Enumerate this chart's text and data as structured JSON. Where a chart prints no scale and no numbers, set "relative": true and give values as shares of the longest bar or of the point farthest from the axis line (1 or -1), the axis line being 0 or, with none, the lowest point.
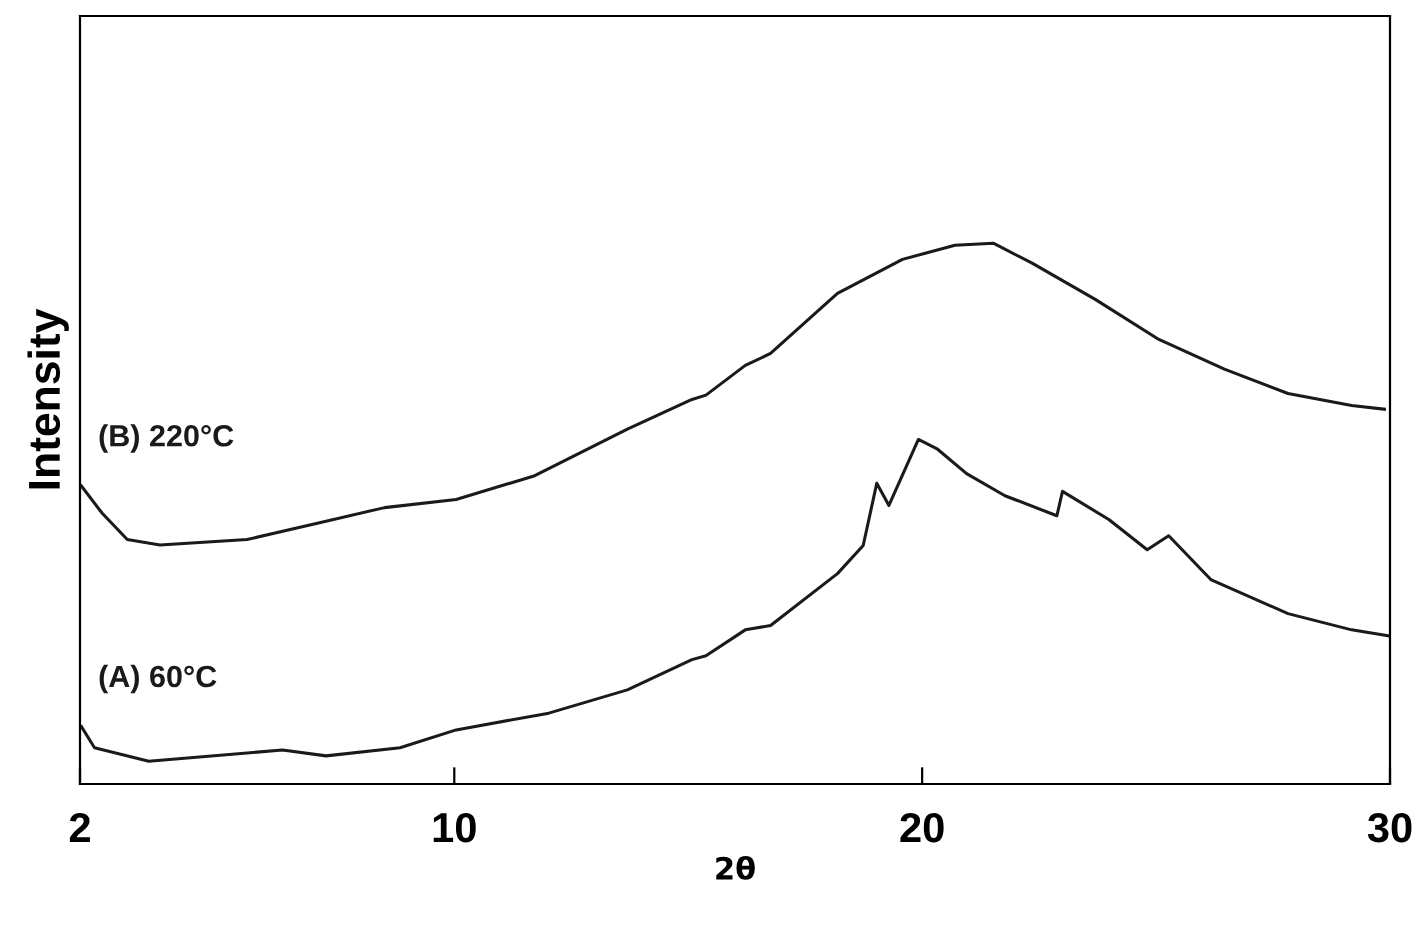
{
  "chart_data": {
    "type": "line",
    "relative": true,
    "xlabel": "2θ",
    "ylabel": "Intensity",
    "xlim": [
      2,
      30
    ],
    "xticks": [
      2,
      10,
      20,
      30
    ],
    "legend": false,
    "grid": false,
    "marker": "none",
    "line_style": "solid",
    "series": [
      {
        "name": "(B) 220°C",
        "color": "#1a1a1a",
        "x": [
          2.03,
          2.47,
          3.01,
          3.71,
          5.57,
          7.12,
          8.51,
          10.04,
          11.72,
          13.7,
          15.08,
          15.38,
          16.22,
          16.76,
          18.19,
          19.58,
          20.7,
          21.52,
          22.35,
          23.7,
          25.06,
          26.46,
          27.82,
          29.18,
          29.88
        ],
        "values": [
          0.551,
          0.501,
          0.452,
          0.442,
          0.452,
          0.483,
          0.511,
          0.526,
          0.57,
          0.656,
          0.711,
          0.719,
          0.774,
          0.796,
          0.907,
          0.97,
          0.996,
          1.0,
          0.963,
          0.896,
          0.822,
          0.767,
          0.722,
          0.7,
          0.693
        ]
      },
      {
        "name": "(A) 60°C",
        "color": "#1a1a1a",
        "x": [
          2.03,
          2.31,
          3.47,
          6.33,
          7.26,
          8.84,
          10.04,
          12.02,
          13.7,
          15.08,
          15.38,
          16.22,
          16.76,
          18.19,
          18.74,
          19.03,
          19.29,
          19.92,
          20.33,
          20.95,
          21.77,
          22.88,
          23.0,
          23.99,
          24.81,
          25.27,
          26.17,
          27.82,
          29.18,
          29.96
        ],
        "values": [
          0.106,
          0.067,
          0.042,
          0.063,
          0.052,
          0.067,
          0.1,
          0.131,
          0.174,
          0.23,
          0.237,
          0.285,
          0.293,
          0.389,
          0.441,
          0.556,
          0.515,
          0.637,
          0.619,
          0.574,
          0.533,
          0.496,
          0.541,
          0.489,
          0.433,
          0.459,
          0.378,
          0.315,
          0.285,
          0.274
        ]
      }
    ]
  }
}
